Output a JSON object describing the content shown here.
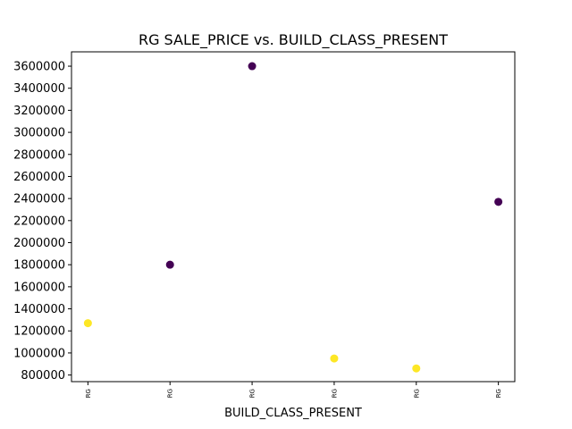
{
  "chart_data": {
    "type": "scatter",
    "title": "RG SALE_PRICE vs. BUILD_CLASS_PRESENT",
    "xlabel": "BUILD_CLASS_PRESENT",
    "ylabel": "",
    "categories": [
      "RG",
      "RG",
      "RG",
      "RG",
      "RG",
      "RG"
    ],
    "points": [
      {
        "x": 0,
        "y": 1270000,
        "color": "#fde725"
      },
      {
        "x": 1,
        "y": 1800000,
        "color": "#440154"
      },
      {
        "x": 2,
        "y": 3600000,
        "color": "#440154"
      },
      {
        "x": 3,
        "y": 950000,
        "color": "#fde725"
      },
      {
        "x": 4,
        "y": 860000,
        "color": "#fde725"
      },
      {
        "x": 5,
        "y": 2370000,
        "color": "#440154"
      }
    ],
    "yticks": [
      800000,
      1000000,
      1200000,
      1400000,
      1600000,
      1800000,
      2000000,
      2200000,
      2400000,
      2600000,
      2800000,
      3000000,
      3200000,
      3400000,
      3600000
    ],
    "xlim": [
      -0.2,
      5.2
    ],
    "ylim": [
      740000,
      3730000
    ],
    "grid": false,
    "legend": "none"
  }
}
